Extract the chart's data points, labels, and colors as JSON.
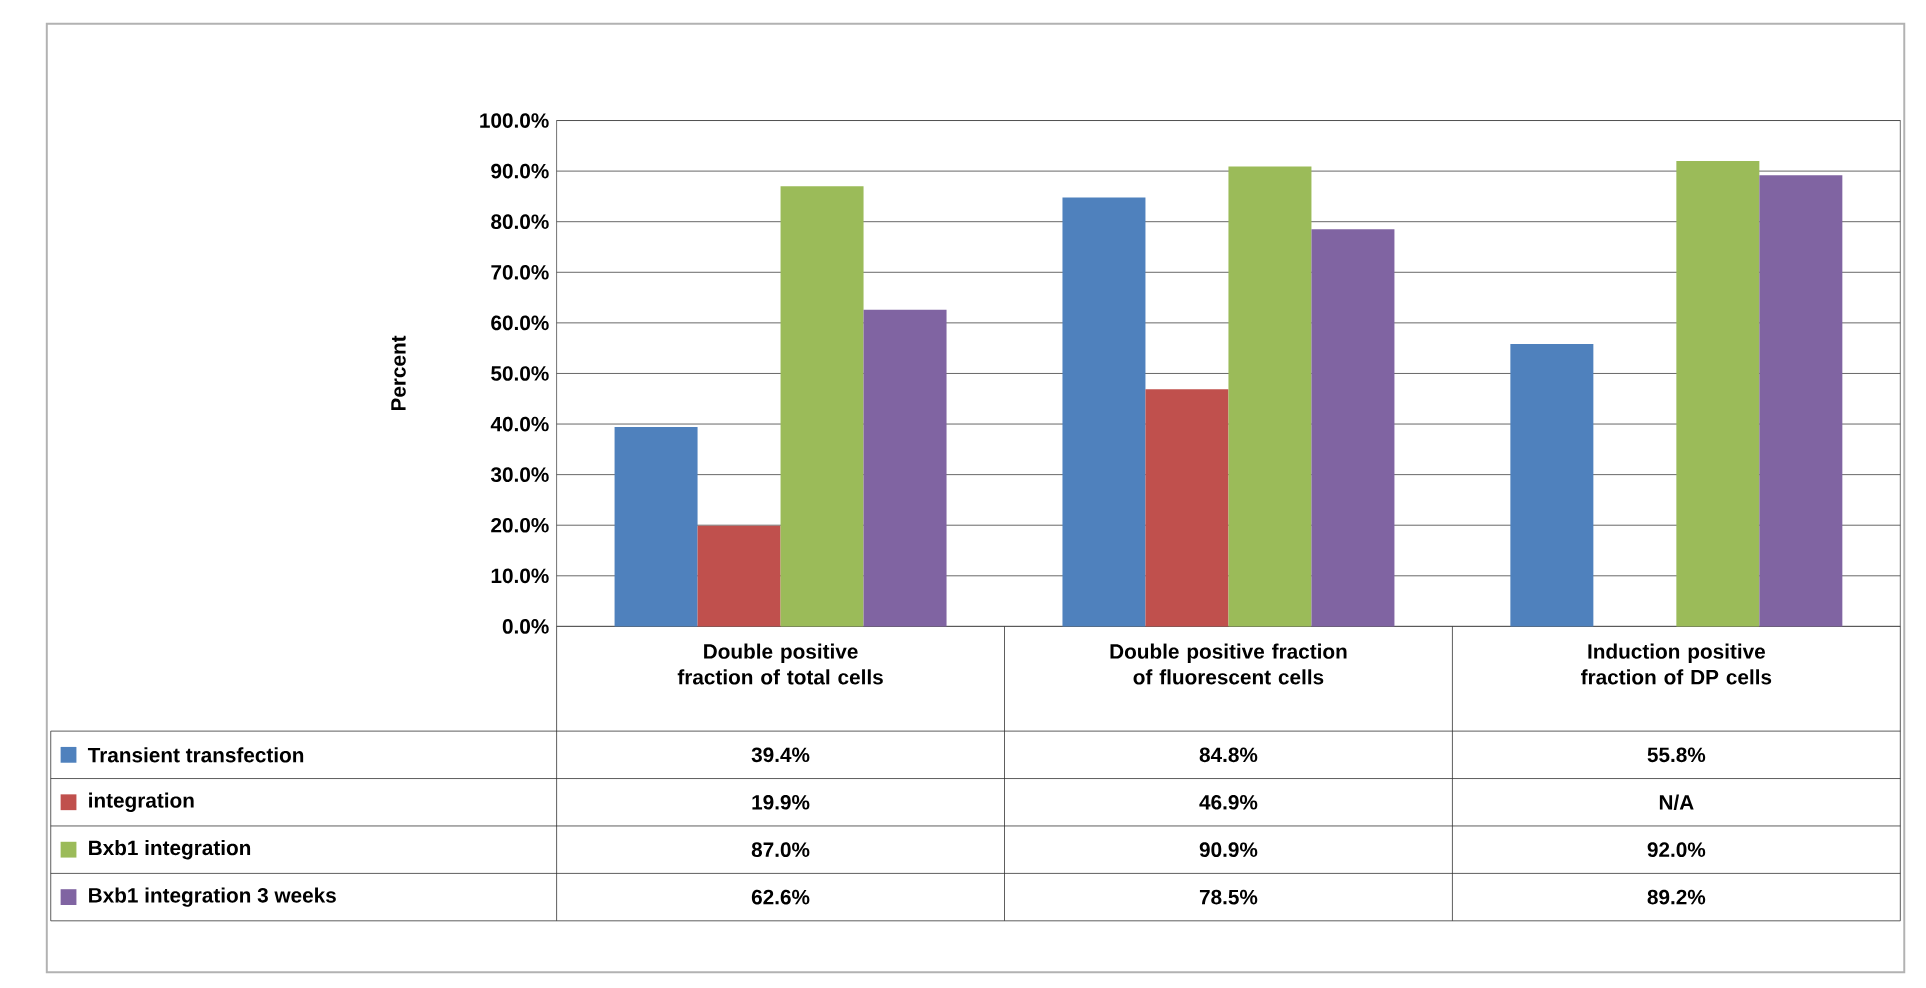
{
  "chart_data": {
    "type": "bar",
    "ylabel": "Percent",
    "categories": [
      "Double positive fraction of total cells",
      "Double positive fraction of fluorescent cells",
      "Induction positive fraction of DP cells"
    ],
    "series": [
      {
        "name": "Transient transfection",
        "color": "#4f81bd",
        "values": [
          39.4,
          84.8,
          55.8
        ],
        "value_labels": [
          "39.4%",
          "84.8%",
          "55.8%"
        ]
      },
      {
        "name": "integration",
        "color": "#c0504d",
        "values": [
          19.9,
          46.9,
          null
        ],
        "value_labels": [
          "19.9%",
          "46.9%",
          "N/A"
        ]
      },
      {
        "name": "Bxb1 integration",
        "color": "#9bbb59",
        "values": [
          87.0,
          90.9,
          92.0
        ],
        "value_labels": [
          "87.0%",
          "90.9%",
          "92.0%"
        ]
      },
      {
        "name": "Bxb1 integration 3 weeks",
        "color": "#8064a2",
        "values": [
          62.6,
          78.5,
          89.2
        ],
        "value_labels": [
          "62.6%",
          "78.5%",
          "89.2%"
        ]
      }
    ],
    "ylim": [
      0,
      100
    ],
    "yticks": [
      {
        "value": 0,
        "label": "0.0%"
      },
      {
        "value": 10,
        "label": "10.0%"
      },
      {
        "value": 20,
        "label": "20.0%"
      },
      {
        "value": 30,
        "label": "30.0%"
      },
      {
        "value": 40,
        "label": "40.0%"
      },
      {
        "value": 50,
        "label": "50.0%"
      },
      {
        "value": 60,
        "label": "60.0%"
      },
      {
        "value": 70,
        "label": "70.0%"
      },
      {
        "value": 80,
        "label": "80.0%"
      },
      {
        "value": 90,
        "label": "90.0%"
      },
      {
        "value": 100,
        "label": "100.0%"
      }
    ],
    "grid": "y",
    "legend": "bottom left"
  }
}
